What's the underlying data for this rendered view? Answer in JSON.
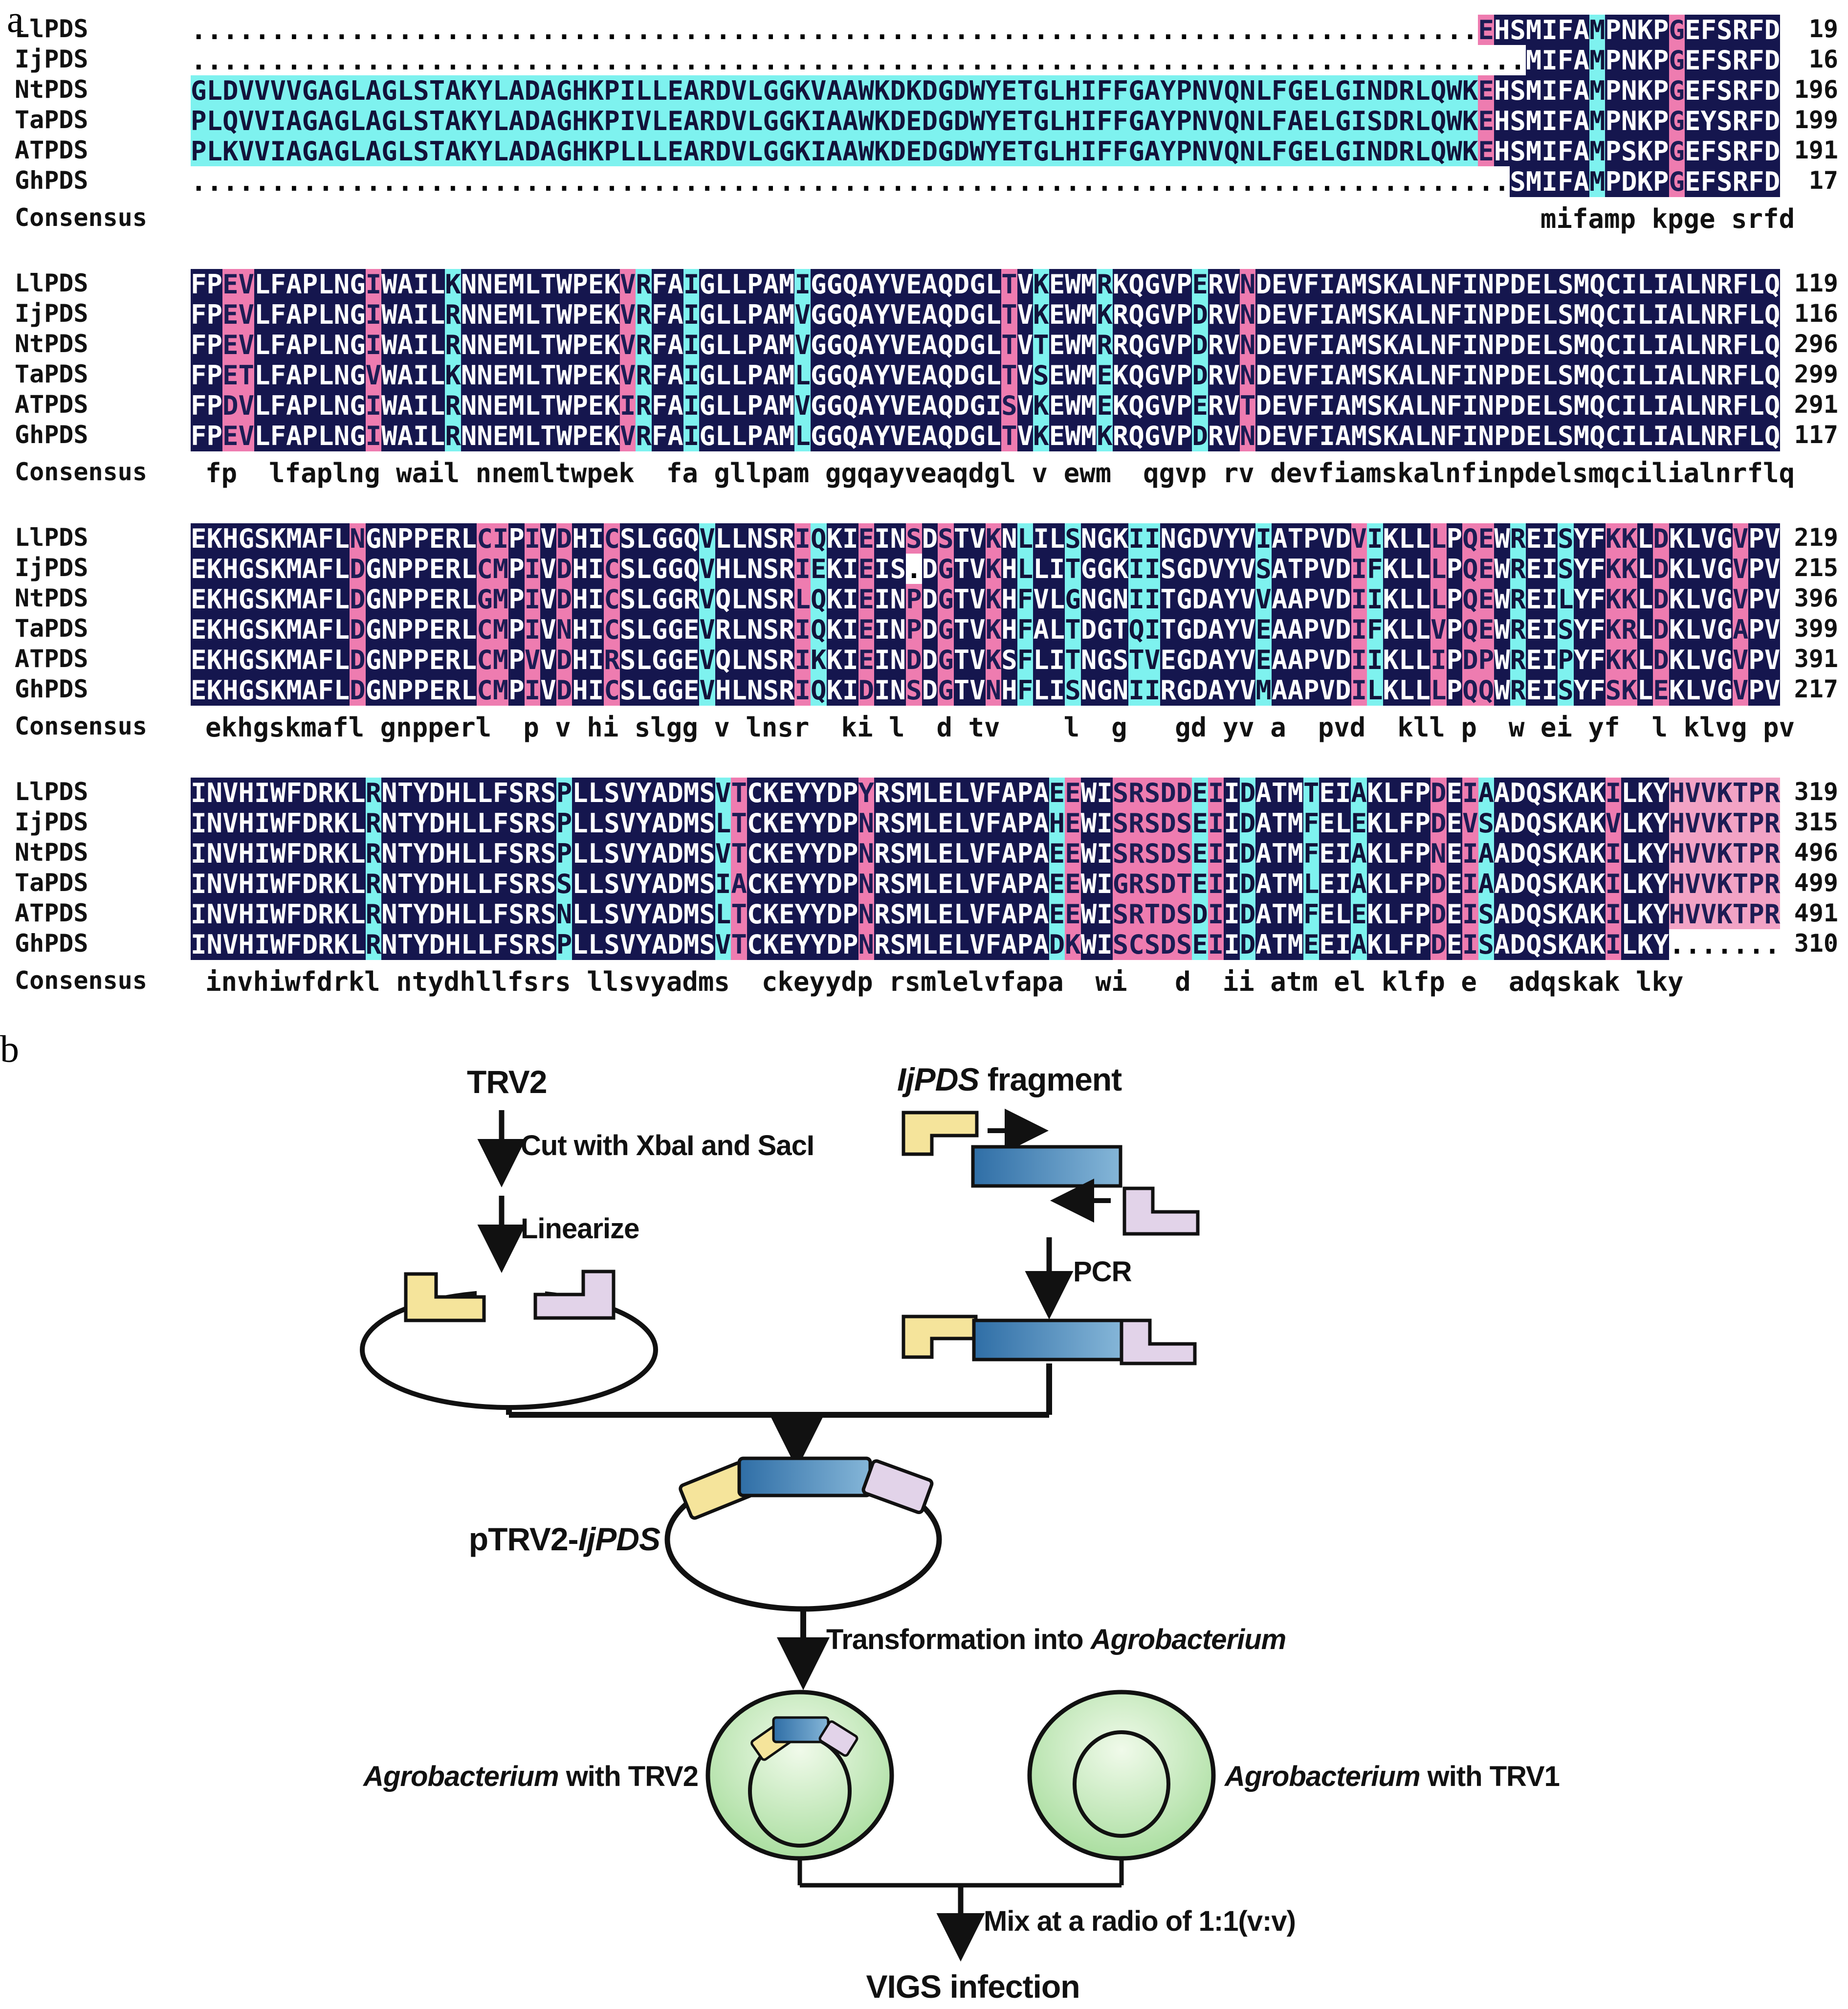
{
  "figure": {
    "panel_a_label": "a",
    "panel_b_label": "b"
  },
  "alignment": {
    "consensus_label": "Consensus",
    "colors": {
      "navy": "#15164e",
      "cyan": "#7ef2ef",
      "pink": "#ee7cb0",
      "light_pink": "#f2a3c5"
    },
    "blocks": [
      {
        "column_colors": "cccccccccccccccccccccccccccccccccccccccccccccccccccccccccccccccccccccccccccccccccpnnnnnncnnnnpnnnn",
        "rows": [
          {
            "label": "LlPDS",
            "seq": ".................................................................................EHSMIFAMPNKPGEFSRFD",
            "num": "19"
          },
          {
            "label": "IjPDS",
            "seq": "....................................................................................MIFAMPNKPGEFSRFD",
            "num": "16"
          },
          {
            "label": "NtPDS",
            "seq": "GLDVVVVGAGLAGLSTAKYLADAGHKPILLEARDVLGGKVAAWKDKDGDWYETGLHIFFGAYPNVQNLFGELGINDRLQWKEHSMIFAMPNKPGEFSRFD",
            "num": "196"
          },
          {
            "label": "TaPDS",
            "seq": "PLQVVIAGAGLAGLSTAKYLADAGHKPIVLEARDVLGGKIAAWKDEDGDWYETGLHIFFGAYPNVQNLFAELGISDRLQWKEHSMIFAMPNKPGEYSRFD",
            "num": "199"
          },
          {
            "label": "ATPDS",
            "seq": "PLKVVIAGAGLAGLSTAKYLADAGHKPLLLEARDVLGGKIAAWKDEDGDWYETGLHIFFGAYPNVQNLFGELGINDRLQWKEHSMIFAMPSKPGEFSRFD",
            "num": "191"
          },
          {
            "label": "GhPDS",
            "seq": "...................................................................................SMIFAMPDKPGEFSRFD",
            "num": "17"
          }
        ],
        "consensus": "                                                                                    mifamp kpge srfd"
      },
      {
        "column_colors": "nnppnnnnnnnpnnnncnnnnnnnnnnpcnncnnnnnncnnnnnnnnnnnnpncnnncnnnnncnnpnnnnnnnnnnnnnnnnnnnnnnnnnnnnnnnnn",
        "rows": [
          {
            "label": "LlPDS",
            "seq": "FPEVLFAPLNGIWAILKNNEMLTWPEKVRFAIGLLPAMIGGQAYVEAQDGLTVKEWMRKQGVPERVNDEVFIAMSKALNFINPDELSMQCILIALNRFLQ",
            "num": "119"
          },
          {
            "label": "IjPDS",
            "seq": "FPEVLFAPLNGIWAILRNNEMLTWPEKVRFAIGLLPAMVGGQAYVEAQDGLTVKEWMKRQGVPDRVNDEVFIAMSKALNFINPDELSMQCILIALNRFLQ",
            "num": "116"
          },
          {
            "label": "NtPDS",
            "seq": "FPEVLFAPLNGIWAILRNNEMLTWPEKVRFAIGLLPAMVGGQAYVEAQDGLTVTEWMRRQGVPDRVNDEVFIAMSKALNFINPDELSMQCILIALNRFLQ",
            "num": "296"
          },
          {
            "label": "TaPDS",
            "seq": "FPETLFAPLNGVWAILKNNEMLTWPEKVRFAIGLLPAMLGGQAYVEAQDGLTVSEWMEKQGVPDRVNDEVFIAMSKALNFINPDELSMQCILIALNRFLQ",
            "num": "299"
          },
          {
            "label": "ATPDS",
            "seq": "FPDVLFAPLNGIWAILRNNEMLTWPEKIRFAIGLLPAMVGGQAYVEAQDGISVKEWMEKQGVPERVTDEVFIAMSKALNFINPDELSMQCILIALNRFLQ",
            "num": "291"
          },
          {
            "label": "GhPDS",
            "seq": "FPEVLFAPLNGIWAILRNNEMLTWPEKVRFAIGLLPAMLGGQAYVEAQDGLTVKEWMKRQGVPDRVNDEVFIAMSKALNFINPDELSMQCILIALNRFLQ",
            "num": "117"
          }
        ],
        "consensus": "fp  lfaplng wail nnemltwpek  fa gllpam ggqayveaqdgl v ewm  qgvp rv devfiamskalnfinpdelsmqcilialnrflq"
      },
      {
        "column_colors": "nnnnnnnnnnpnnnnnnnppnpnpnnpnnnnncnnnnnpcnnpnnpnpnnpncnncnnnccnnnnnncnnnnnpcnnnpnppncnncnnppnpnnnnpnn",
        "rows": [
          {
            "label": "LlPDS",
            "seq": "EKHGSKMAFLNGNPPERLCIPIVDHICSLGGQVLLNSRIQKIEINSDSTVKNLILSNGKIINGDVYVIATPVDVIKLLLPQEWREISYFKKLDKLVGVPV",
            "num": "219"
          },
          {
            "label": "IjPDS",
            "seq": "EKHGSKMAFLDGNPPERLCMPIVDHICSLGGQVHLNSRIEKIEIS.DGTVKHLLITGGKIISGDVYVSATPVDIFKLLLPQEWREISYFKKLDKLVGVPV",
            "num": "215"
          },
          {
            "label": "NtPDS",
            "seq": "EKHGSKMAFLDGNPPERLGMPIVDHICSLGGRVQLNSRLQKIEINPDGTVKHFVLGNGNIITGDAYVVAAPVDIIKLLLPQEWREILYFKKLDKLVGVPV",
            "num": "396"
          },
          {
            "label": "TaPDS",
            "seq": "EKHGSKMAFLDGNPPERLCMPIVNHICSLGGEVRLNSRIQKIEINPDGTVKHFALTDGTQITGDAYVEAAPVDIFKLLVPQEWREISYFKRLDKLVGAPV",
            "num": "399"
          },
          {
            "label": "ATPDS",
            "seq": "EKHGSKMAFLDGNPPERLCMPVVDHIRSLGGEVQLNSRIKKIEINDDGTVKSFLITNGSTVEGDAYVEAAPVDIIKLLIPDPWREIPYFKKLDKLVGVPV",
            "num": "391"
          },
          {
            "label": "GhPDS",
            "seq": "EKHGSKMAFLDGNPPERLCMPIVDHICSLGGEVHLNSRIQKIDINSDGTVNHFLISNGNIIRGDAYVMAAPVDILKLLLPQQWREISYFSKLEKLVGVPV",
            "num": "217"
          }
        ],
        "consensus": "ekhgskmafl gnpperl  p v hi slgg v lnsr  ki l  d tv    l  g   gd yv a  pvd  kll p  w ei yf  l klvg pv"
      },
      {
        "column_colors": "nnnnnnnnnnncnnnnnnnnnnncnnnnnnnnncpnnnnnnnpnnnnnnnnnnncpnnpppppcpncnnncnncnnnnpnpcnnnnnnnpnnnPPPPPPP",
        "rows": [
          {
            "label": "LlPDS",
            "seq": "INVHIWFDRKLRNTYDHLLFSRSPLLSVYADMSVTCKEYYDPYRSMLELVFAPAEEWISRSDDEIIDATMTEIAKLFPDEIAADQSKAKILKYHVVKTPR",
            "num": "319"
          },
          {
            "label": "IjPDS",
            "seq": "INVHIWFDRKLRNTYDHLLFSRSPLLSVYADMSLTCKEYYDPNRSMLELVFAPAHEWISRSDSEIIDATMFELEKLFPDEVSADQSKAKVLKYHVVKTPR",
            "num": "315"
          },
          {
            "label": "NtPDS",
            "seq": "INVHIWFDRKLRNTYDHLLFSRSPLLSVYADMSVTCKEYYDPNRSMLELVFAPAEEWISRSDSEIIDATMFEIAKLFPNEIAADQSKAKILKYHVVKTPR",
            "num": "496"
          },
          {
            "label": "TaPDS",
            "seq": "INVHIWFDRKLRNTYDHLLFSRSSLLSVYADMSIACKEYYDPNRSMLELVFAPAEEWIGRSDTEIIDATMLEIAKLFPDEIAADQSKAKILKYHVVKTPR",
            "num": "499"
          },
          {
            "label": "ATPDS",
            "seq": "INVHIWFDRKLRNTYDHLLFSRSNLLSVYADMSLTCKEYYDPNRSMLELVFAPAEEWISRTDSDIIDATMFELEKLFPDEISADQSKAKILKYHVVKTPR",
            "num": "491"
          },
          {
            "label": "GhPDS",
            "seq": "INVHIWFDRKLRNTYDHLLFSRSPLLSVYADMSVTCKEYYDPNRSMLELVFAPADKWISCSDSEIIDATMEEIAKLFPDEISADQSKAKILKY.......",
            "num": "310"
          }
        ],
        "consensus": "invhiwfdrkl ntydhllfsrs llsvyadms  ckeyydp rsmlelvfapa  wi   d  ii atm el klfp e  adqskak lky       "
      }
    ]
  },
  "diagram": {
    "trv2": "TRV2",
    "cut_label": "Cut with XbaI and SacI",
    "linearize_label": "Linearize",
    "fragment_italic": "IjPDS",
    "fragment_rest": " fragment",
    "pcr_label": "PCR",
    "plasmid_prefix": "pTRV2-",
    "plasmid_italic": "IjPDS",
    "transform_prefix": "Transformation into ",
    "transform_italic": "Agrobacterium",
    "agro_left_italic": "Agrobacterium",
    "agro_left_rest": " with TRV2",
    "agro_right_italic": "Agrobacterium",
    "agro_right_rest": " with TRV1",
    "mix_label": "Mix at a radio of 1:1(v:v)",
    "vigs_label": "VIGS infection",
    "colors": {
      "yellow": "#f5e49b",
      "lavender": "#e2d3e9",
      "blue_dark": "#2f6ea6",
      "blue_light": "#85b6d8",
      "green_light": "#eaf7e3",
      "green": "#8fd383"
    }
  }
}
